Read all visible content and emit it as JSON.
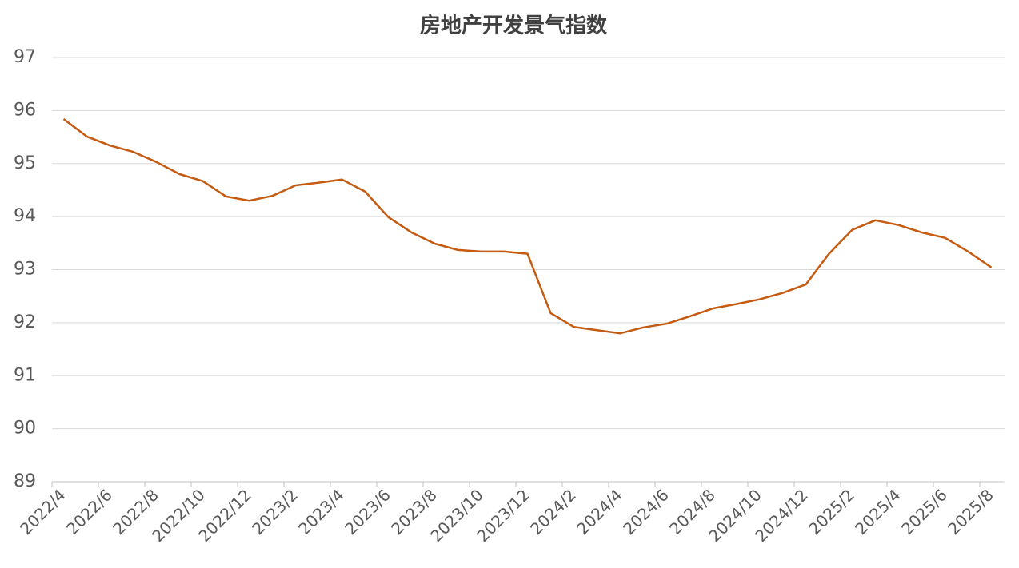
{
  "chart_data": {
    "type": "line",
    "title": "房地产开发景气指数",
    "categories": [
      "2022/4",
      null,
      "2022/6",
      null,
      "2022/8",
      null,
      "2022/10",
      null,
      "2022/12",
      null,
      "2023/2",
      null,
      "2023/4",
      null,
      "2023/6",
      null,
      "2023/8",
      null,
      "2023/10",
      null,
      "2023/12",
      null,
      "2024/2",
      null,
      "2024/4",
      null,
      "2024/6",
      null,
      "2024/8",
      null,
      "2024/10",
      null,
      "2024/12",
      null,
      "2025/2",
      null,
      "2025/4",
      null,
      "2025/6",
      null,
      "2025/8"
    ],
    "values": [
      95.84,
      95.51,
      95.34,
      95.22,
      95.03,
      94.8,
      94.67,
      94.38,
      94.3,
      94.39,
      94.59,
      94.64,
      94.7,
      94.47,
      93.99,
      93.7,
      93.49,
      93.37,
      93.34,
      93.34,
      93.3,
      92.18,
      91.92,
      91.86,
      91.8,
      91.91,
      91.98,
      92.12,
      92.27,
      92.35,
      92.44,
      92.56,
      92.72,
      93.3,
      93.75,
      93.93,
      93.84,
      93.7,
      93.6,
      93.34,
      93.04
    ],
    "color": "#c55a11",
    "ylim": [
      89,
      97
    ],
    "yticks": [
      89,
      90,
      91,
      92,
      93,
      94,
      95,
      96,
      97
    ],
    "grid": true
  }
}
